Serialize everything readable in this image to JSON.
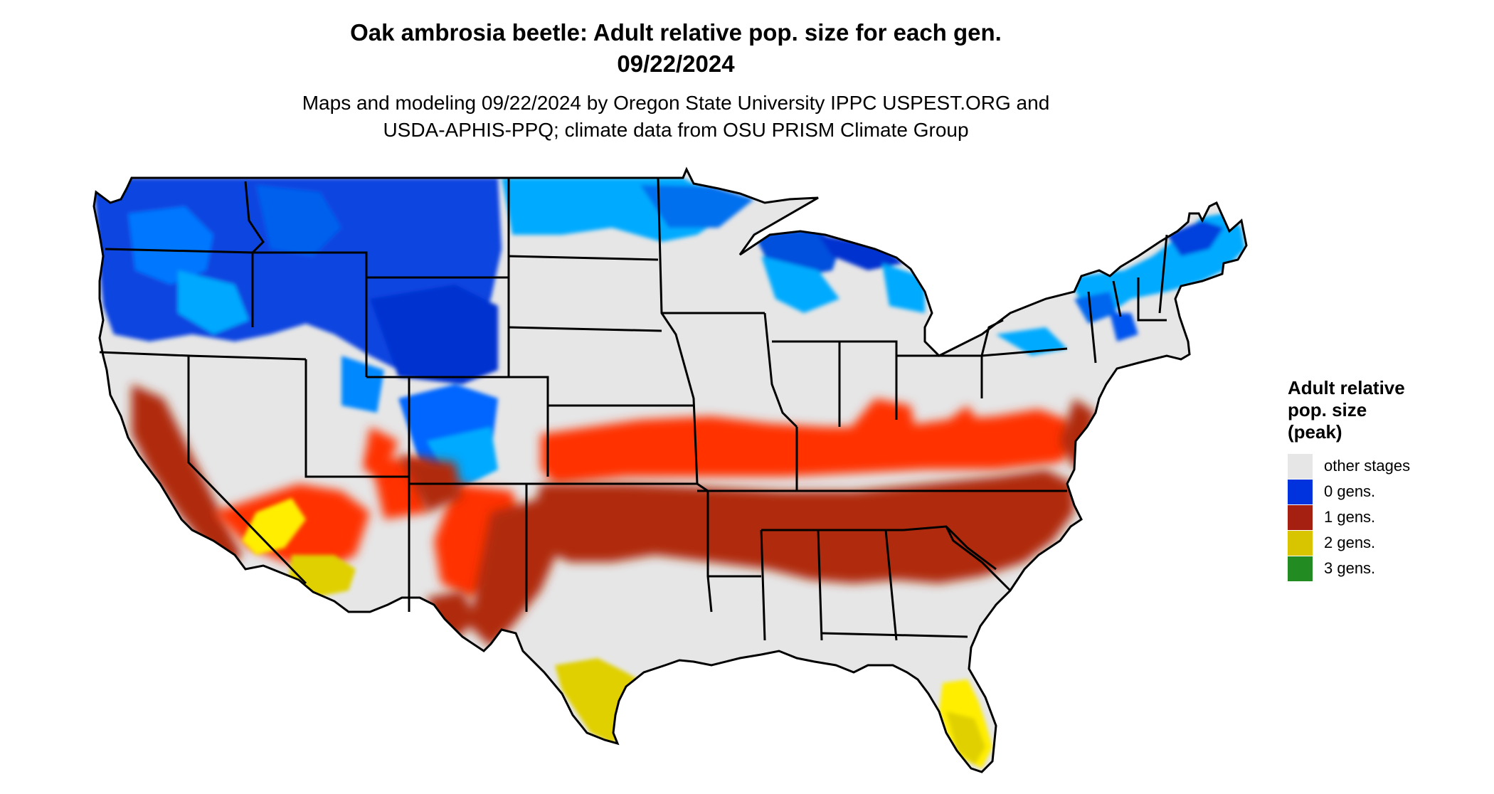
{
  "title": {
    "line1": "Oak ambrosia beetle: Adult relative pop. size for each gen.",
    "line2": "09/22/2024"
  },
  "subtitle": {
    "line1": "Maps and modeling 09/22/2024 by Oregon State University IPPC USPEST.ORG and",
    "line2": "USDA-APHIS-PPQ; climate data from OSU PRISM Climate Group"
  },
  "legend": {
    "title_line1": "Adult relative",
    "title_line2": "pop. size",
    "title_line3": "(peak)",
    "items": [
      {
        "label": "other stages",
        "color": "#e6e6e6"
      },
      {
        "label": "0 gens.",
        "color": "#0033dd"
      },
      {
        "label": "1 gens.",
        "color": "#a52010"
      },
      {
        "label": "2 gens.",
        "color": "#d9c400"
      },
      {
        "label": "3 gens.",
        "color": "#228b22"
      }
    ]
  },
  "map": {
    "region": "contiguous United States",
    "colors": {
      "other": "#e6e6e6",
      "gen0_dark": "#0033dd",
      "gen0_mid": "#0066ee",
      "gen0_light": "#00aaff",
      "gen1_bright": "#ff3300",
      "gen1_dark": "#b02a10",
      "gen2": "#e0d000",
      "gen2_bright": "#ffee00",
      "borders": "#000000"
    }
  }
}
